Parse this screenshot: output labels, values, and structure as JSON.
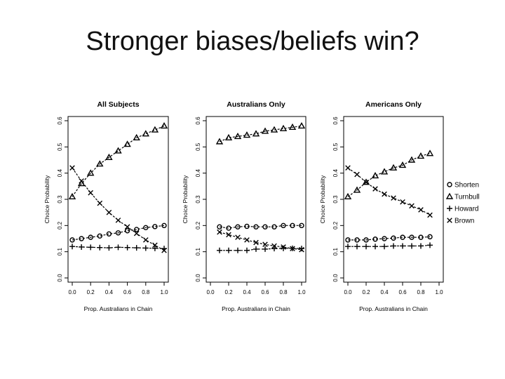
{
  "slide": {
    "title": "Stronger biases/beliefs win?"
  },
  "chart_data": [
    {
      "type": "line",
      "title": "All Subjects",
      "xlabel": "Prop. Australians in Chain",
      "ylabel": "Choice Probability",
      "xlim": [
        0,
        1
      ],
      "ylim": [
        0,
        0.6
      ],
      "xticks": [
        "0.0",
        "0.2",
        "0.4",
        "0.6",
        "0.8",
        "1.0"
      ],
      "yticks": [
        "0.0",
        "0.1",
        "0.2",
        "0.3",
        "0.4",
        "0.5",
        "0.6"
      ],
      "x": [
        0.0,
        0.1,
        0.2,
        0.3,
        0.4,
        0.5,
        0.6,
        0.7,
        0.8,
        0.9,
        1.0
      ],
      "series": [
        {
          "name": "Shorten",
          "marker": "circle",
          "values": [
            0.145,
            0.15,
            0.155,
            0.16,
            0.168,
            0.172,
            0.18,
            0.185,
            0.192,
            0.196,
            0.2
          ]
        },
        {
          "name": "Turnbull",
          "marker": "triangle",
          "values": [
            0.31,
            0.36,
            0.4,
            0.435,
            0.46,
            0.485,
            0.51,
            0.535,
            0.55,
            0.565,
            0.58
          ]
        },
        {
          "name": "Howard",
          "marker": "plus",
          "values": [
            0.12,
            0.118,
            0.117,
            0.116,
            0.115,
            0.117,
            0.116,
            0.115,
            0.114,
            0.113,
            0.112
          ]
        },
        {
          "name": "Brown",
          "marker": "x",
          "values": [
            0.42,
            0.37,
            0.325,
            0.285,
            0.25,
            0.22,
            0.195,
            0.17,
            0.145,
            0.125,
            0.105
          ]
        }
      ]
    },
    {
      "type": "line",
      "title": "Australians Only",
      "xlabel": "Prop. Australians in Chain",
      "ylabel": "Choice Probability",
      "xlim": [
        0,
        1
      ],
      "ylim": [
        0,
        0.6
      ],
      "xticks": [
        "0.0",
        "0.2",
        "0.4",
        "0.6",
        "0.8",
        "1.0"
      ],
      "yticks": [
        "0.0",
        "0.1",
        "0.2",
        "0.3",
        "0.4",
        "0.5",
        "0.6"
      ],
      "x": [
        0.1,
        0.2,
        0.3,
        0.4,
        0.5,
        0.6,
        0.7,
        0.8,
        0.9,
        1.0
      ],
      "series": [
        {
          "name": "Shorten",
          "marker": "circle",
          "values": [
            0.195,
            0.19,
            0.195,
            0.197,
            0.195,
            0.195,
            0.195,
            0.2,
            0.2,
            0.2
          ]
        },
        {
          "name": "Turnbull",
          "marker": "triangle",
          "values": [
            0.52,
            0.535,
            0.54,
            0.545,
            0.55,
            0.56,
            0.565,
            0.57,
            0.575,
            0.58
          ]
        },
        {
          "name": "Howard",
          "marker": "plus",
          "values": [
            0.105,
            0.105,
            0.105,
            0.105,
            0.11,
            0.11,
            0.112,
            0.113,
            0.113,
            0.112
          ]
        },
        {
          "name": "Brown",
          "marker": "x",
          "values": [
            0.175,
            0.165,
            0.155,
            0.145,
            0.135,
            0.128,
            0.122,
            0.118,
            0.112,
            0.108
          ]
        }
      ]
    },
    {
      "type": "line",
      "title": "Americans Only",
      "xlabel": "Prop. Australians in Chain",
      "ylabel": "Choice Probability",
      "xlim": [
        0,
        1
      ],
      "ylim": [
        0,
        0.6
      ],
      "xticks": [
        "0.0",
        "0.2",
        "0.4",
        "0.6",
        "0.8",
        "1.0"
      ],
      "yticks": [
        "0.0",
        "0.1",
        "0.2",
        "0.3",
        "0.4",
        "0.5",
        "0.6"
      ],
      "x": [
        0.0,
        0.1,
        0.2,
        0.3,
        0.4,
        0.5,
        0.6,
        0.7,
        0.8,
        0.9
      ],
      "series": [
        {
          "name": "Shorten",
          "marker": "circle",
          "values": [
            0.145,
            0.145,
            0.145,
            0.148,
            0.15,
            0.152,
            0.155,
            0.155,
            0.155,
            0.157
          ]
        },
        {
          "name": "Turnbull",
          "marker": "triangle",
          "values": [
            0.31,
            0.335,
            0.365,
            0.39,
            0.405,
            0.42,
            0.43,
            0.45,
            0.465,
            0.475
          ]
        },
        {
          "name": "Howard",
          "marker": "plus",
          "values": [
            0.12,
            0.12,
            0.12,
            0.12,
            0.12,
            0.122,
            0.122,
            0.122,
            0.122,
            0.125
          ]
        },
        {
          "name": "Brown",
          "marker": "x",
          "values": [
            0.42,
            0.395,
            0.365,
            0.34,
            0.32,
            0.305,
            0.29,
            0.275,
            0.26,
            0.24
          ]
        }
      ],
      "legend": {
        "placement": "right",
        "entries": [
          {
            "name": "Shorten",
            "marker": "circle"
          },
          {
            "name": "Turnbull",
            "marker": "triangle"
          },
          {
            "name": "Howard",
            "marker": "plus"
          },
          {
            "name": "Brown",
            "marker": "x"
          }
        ]
      }
    }
  ]
}
